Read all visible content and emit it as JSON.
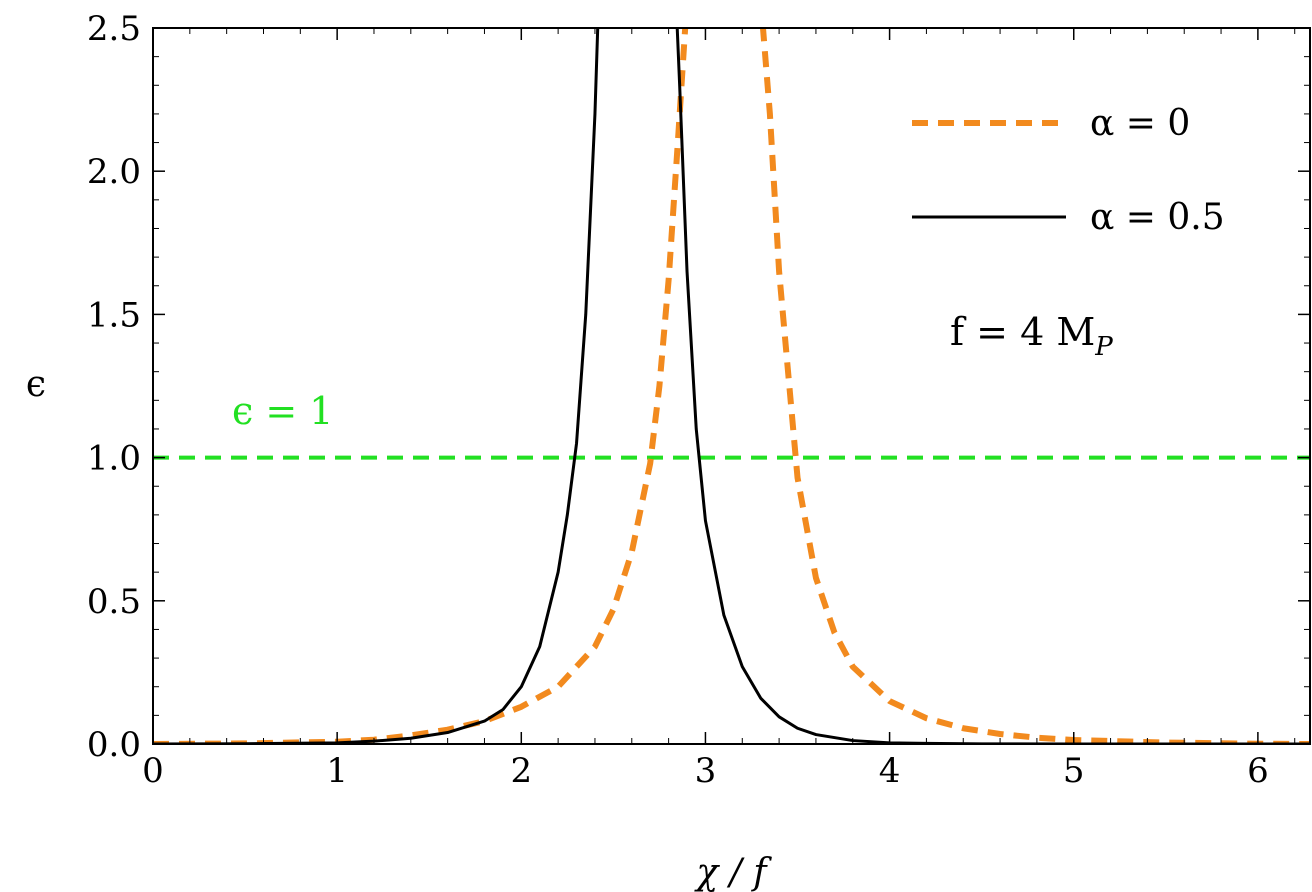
{
  "chart_data": {
    "type": "line",
    "xlabel": "χ / f",
    "ylabel": "ϵ",
    "xlim": [
      0,
      6.283
    ],
    "ylim": [
      0,
      2.5
    ],
    "xticks": [
      "0",
      "1",
      "2",
      "3",
      "4",
      "5",
      "6"
    ],
    "yticks": [
      "0.0",
      "0.5",
      "1.0",
      "1.5",
      "2.0",
      "2.5"
    ],
    "legend_position": "top-right",
    "grid": false,
    "series": [
      {
        "name": "α = 0",
        "color": "#F28A1E",
        "style": "dashed",
        "x": [
          0.0,
          0.5,
          1.0,
          1.2,
          1.4,
          1.6,
          1.8,
          2.0,
          2.2,
          2.4,
          2.5,
          2.6,
          2.7,
          2.75,
          2.8,
          2.85,
          2.9,
          2.95,
          3.0,
          3.1,
          3.2,
          3.3,
          3.35,
          3.4,
          3.5,
          3.6,
          3.7,
          3.8,
          4.0,
          4.2,
          4.4,
          4.6,
          4.8,
          5.0,
          5.5,
          6.0,
          6.283
        ],
        "y": [
          0.0,
          0.002,
          0.008,
          0.015,
          0.03,
          0.05,
          0.08,
          0.13,
          0.2,
          0.34,
          0.47,
          0.67,
          0.98,
          1.25,
          1.62,
          2.1,
          2.6,
          null,
          null,
          null,
          null,
          2.6,
          2.2,
          1.65,
          0.93,
          0.58,
          0.39,
          0.27,
          0.15,
          0.09,
          0.055,
          0.035,
          0.022,
          0.014,
          0.005,
          0.001,
          0.0
        ]
      },
      {
        "name": "α = 0.5",
        "color": "#000000",
        "style": "solid",
        "x": [
          0.0,
          0.5,
          1.0,
          1.2,
          1.4,
          1.6,
          1.8,
          1.9,
          2.0,
          2.1,
          2.2,
          2.25,
          2.3,
          2.35,
          2.4,
          2.42,
          2.45,
          2.6,
          2.8,
          2.84,
          2.86,
          2.9,
          2.95,
          3.0,
          3.1,
          3.2,
          3.3,
          3.4,
          3.5,
          3.6,
          3.8,
          4.0,
          4.2,
          4.5,
          5.0,
          6.283
        ],
        "y": [
          0.0,
          0.001,
          0.004,
          0.01,
          0.02,
          0.04,
          0.08,
          0.12,
          0.2,
          0.34,
          0.6,
          0.8,
          1.05,
          1.5,
          2.2,
          2.6,
          null,
          null,
          null,
          2.6,
          2.3,
          1.65,
          1.1,
          0.78,
          0.45,
          0.27,
          0.16,
          0.095,
          0.055,
          0.033,
          0.012,
          0.004,
          0.002,
          0.0005,
          0.0,
          0.0
        ]
      }
    ],
    "reference_line": {
      "y": 1.0,
      "label": "ϵ = 1",
      "color": "#22E022"
    },
    "annotation": {
      "text": "f = 4 M",
      "subscript": "P"
    }
  }
}
